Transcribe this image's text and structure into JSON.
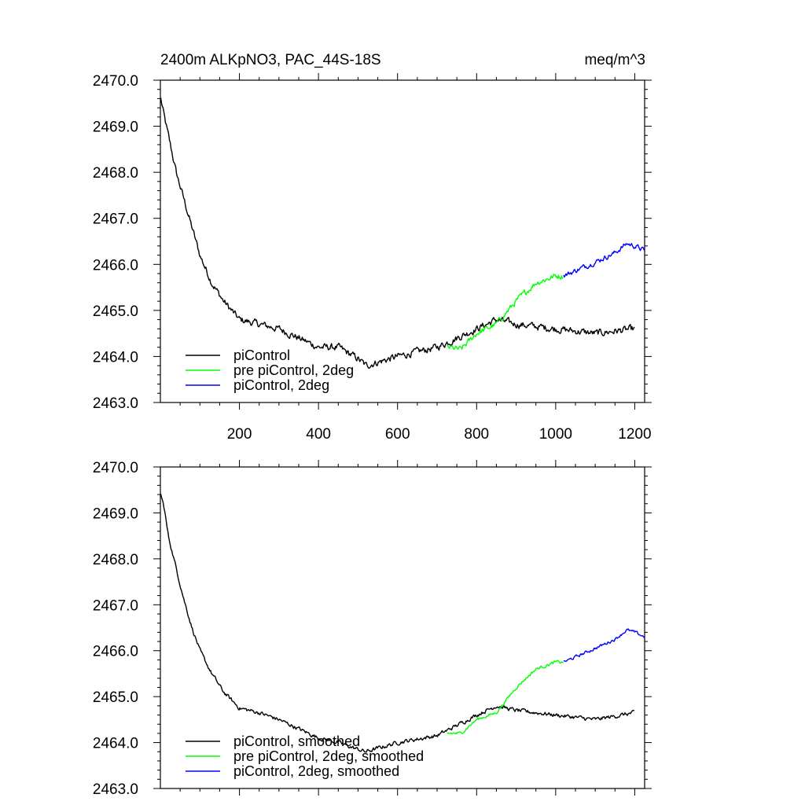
{
  "title_left": "2400m ALKpNO3, PAC_44S-18S",
  "title_right": "meq/m^3",
  "colors": {
    "black": "#000000",
    "green": "#00ff00",
    "blue": "#0000ff"
  },
  "chart_data": [
    {
      "type": "line",
      "panel": "top",
      "xlim": [
        0,
        1225
      ],
      "ylim": [
        2463.0,
        2470.0
      ],
      "xticks": [
        200,
        400,
        600,
        800,
        1000,
        1200
      ],
      "xtick_labels": [
        "200",
        "400",
        "600",
        "800",
        "1000",
        "1200"
      ],
      "yticks": [
        2463.0,
        2464.0,
        2465.0,
        2466.0,
        2467.0,
        2468.0,
        2469.0,
        2470.0
      ],
      "ytick_labels": [
        "2463.0",
        "2464.0",
        "2465.0",
        "2466.0",
        "2467.0",
        "2468.0",
        "2469.0",
        "2470.0"
      ],
      "legend_position": "bottom-left",
      "series": [
        {
          "name": "piControl",
          "color": "#000000",
          "x_range": [
            1,
            1200
          ],
          "noise": 0.14,
          "anchors": [
            [
              1,
              2469.6
            ],
            [
              10,
              2469.2
            ],
            [
              20,
              2468.8
            ],
            [
              40,
              2468.0
            ],
            [
              60,
              2467.4
            ],
            [
              80,
              2466.8
            ],
            [
              100,
              2466.2
            ],
            [
              130,
              2465.6
            ],
            [
              160,
              2465.2
            ],
            [
              200,
              2464.8
            ],
            [
              250,
              2464.7
            ],
            [
              300,
              2464.6
            ],
            [
              350,
              2464.4
            ],
            [
              400,
              2464.2
            ],
            [
              450,
              2464.2
            ],
            [
              500,
              2463.95
            ],
            [
              520,
              2463.8
            ],
            [
              600,
              2464.0
            ],
            [
              700,
              2464.2
            ],
            [
              800,
              2464.6
            ],
            [
              850,
              2464.8
            ],
            [
              900,
              2464.7
            ],
            [
              1000,
              2464.6
            ],
            [
              1100,
              2464.5
            ],
            [
              1200,
              2464.6
            ]
          ]
        },
        {
          "name": "pre piControl, 2deg",
          "color": "#00ff00",
          "x_range": [
            725,
            1020
          ],
          "noise": 0.12,
          "anchors": [
            [
              725,
              2464.2
            ],
            [
              760,
              2464.15
            ],
            [
              800,
              2464.5
            ],
            [
              850,
              2464.7
            ],
            [
              900,
              2465.2
            ],
            [
              950,
              2465.6
            ],
            [
              1000,
              2465.75
            ],
            [
              1020,
              2465.75
            ]
          ]
        },
        {
          "name": "piControl, 2deg",
          "color": "#0000ff",
          "x_range": [
            1020,
            1225
          ],
          "noise": 0.1,
          "anchors": [
            [
              1020,
              2465.75
            ],
            [
              1060,
              2465.9
            ],
            [
              1100,
              2466.05
            ],
            [
              1150,
              2466.25
            ],
            [
              1180,
              2466.45
            ],
            [
              1200,
              2466.4
            ],
            [
              1225,
              2466.3
            ]
          ]
        }
      ]
    },
    {
      "type": "line",
      "panel": "bottom",
      "xlim": [
        0,
        1225
      ],
      "ylim": [
        2463.0,
        2470.0
      ],
      "xticks": [
        200,
        400,
        600,
        800,
        1000,
        1200
      ],
      "yticks": [
        2463.0,
        2464.0,
        2465.0,
        2466.0,
        2467.0,
        2468.0,
        2469.0,
        2470.0
      ],
      "ytick_labels": [
        "2463.0",
        "2464.0",
        "2465.0",
        "2466.0",
        "2467.0",
        "2468.0",
        "2469.0",
        "2470.0"
      ],
      "legend_position": "bottom-left",
      "series": [
        {
          "name": "piControl, smoothed",
          "color": "#000000",
          "x_range": [
            1,
            1200
          ],
          "noise": 0.08,
          "anchors": [
            [
              1,
              2469.4
            ],
            [
              10,
              2469.1
            ],
            [
              20,
              2468.5
            ],
            [
              40,
              2467.8
            ],
            [
              60,
              2467.1
            ],
            [
              80,
              2466.5
            ],
            [
              100,
              2466.0
            ],
            [
              130,
              2465.5
            ],
            [
              160,
              2465.1
            ],
            [
              200,
              2464.75
            ],
            [
              250,
              2464.65
            ],
            [
              300,
              2464.5
            ],
            [
              350,
              2464.3
            ],
            [
              400,
              2464.1
            ],
            [
              450,
              2464.0
            ],
            [
              500,
              2463.85
            ],
            [
              520,
              2463.8
            ],
            [
              600,
              2464.0
            ],
            [
              700,
              2464.15
            ],
            [
              800,
              2464.6
            ],
            [
              850,
              2464.8
            ],
            [
              900,
              2464.7
            ],
            [
              1000,
              2464.6
            ],
            [
              1100,
              2464.5
            ],
            [
              1200,
              2464.65
            ]
          ]
        },
        {
          "name": "pre piControl, 2deg, smoothed",
          "color": "#00ff00",
          "x_range": [
            725,
            1020
          ],
          "noise": 0.06,
          "anchors": [
            [
              725,
              2464.2
            ],
            [
              760,
              2464.2
            ],
            [
              800,
              2464.5
            ],
            [
              850,
              2464.65
            ],
            [
              900,
              2465.2
            ],
            [
              950,
              2465.6
            ],
            [
              1000,
              2465.75
            ],
            [
              1020,
              2465.75
            ]
          ]
        },
        {
          "name": "piControl, 2deg, smoothed",
          "color": "#0000ff",
          "x_range": [
            1020,
            1225
          ],
          "noise": 0.06,
          "anchors": [
            [
              1020,
              2465.75
            ],
            [
              1060,
              2465.9
            ],
            [
              1100,
              2466.05
            ],
            [
              1150,
              2466.25
            ],
            [
              1180,
              2466.45
            ],
            [
              1200,
              2466.4
            ],
            [
              1225,
              2466.3
            ]
          ]
        }
      ]
    }
  ]
}
